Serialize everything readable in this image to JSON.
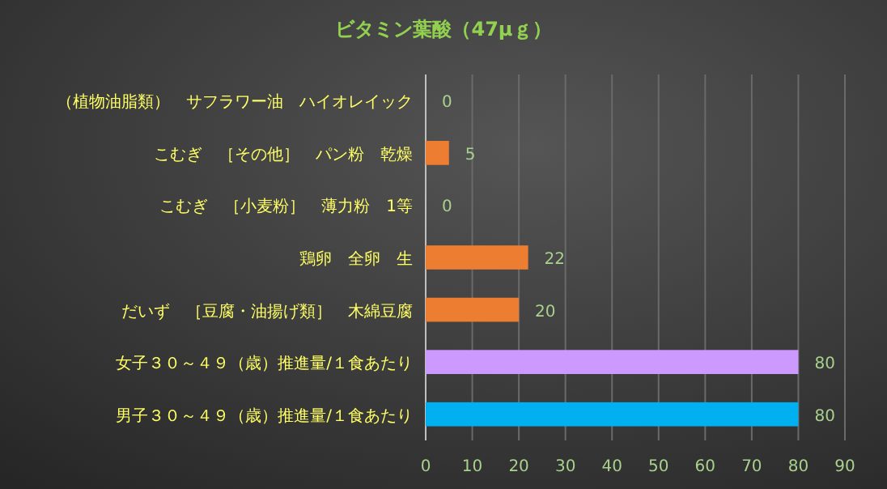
{
  "chart_data": {
    "type": "bar",
    "orientation": "horizontal",
    "title": "ビタミン葉酸（47μｇ）",
    "categories": [
      "（植物油脂類）　サフラワー油　ハイオレイック",
      "こむぎ　［その他］　パン粉　乾燥",
      "こむぎ　［小麦粉］　薄力粉　1等",
      "鶏卵　全卵　生",
      "だいず　［豆腐・油揚げ類］　木綿豆腐",
      "女子３０～４９（歳）推進量/１食あたり",
      "男子３０～４９（歳）推進量/１食あたり"
    ],
    "values": [
      0,
      5,
      0,
      22,
      20,
      80,
      80
    ],
    "colors": [
      "#ed7d31",
      "#ed7d31",
      "#ed7d31",
      "#ed7d31",
      "#ed7d31",
      "#cc99ff",
      "#00b0f0"
    ],
    "xlim": [
      0,
      90
    ],
    "xticks": [
      0,
      10,
      20,
      30,
      40,
      50,
      60,
      70,
      80,
      90
    ],
    "grid": "x",
    "data_labels": true
  }
}
